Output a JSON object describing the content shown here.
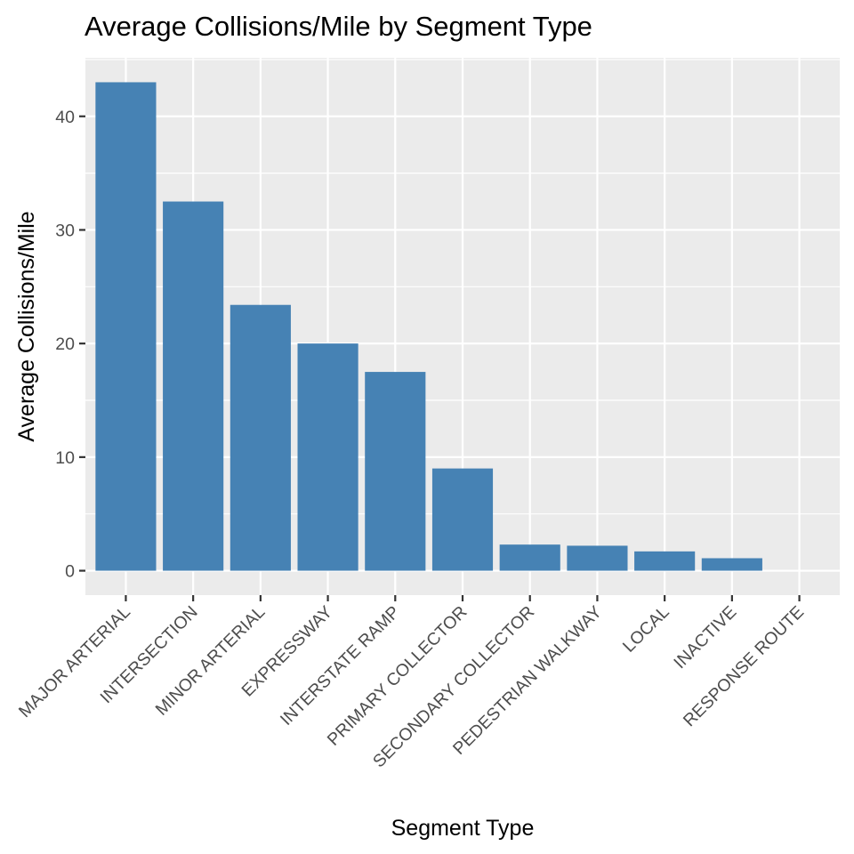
{
  "chart_data": {
    "type": "bar",
    "title": "Average Collisions/Mile by Segment Type",
    "xlabel": "Segment Type",
    "ylabel": "Average Collisions/Mile",
    "categories": [
      "MAJOR ARTERIAL",
      "INTERSECTION",
      "MINOR ARTERIAL",
      "EXPRESSWAY",
      "INTERSTATE RAMP",
      "PRIMARY COLLECTOR",
      "SECONDARY COLLECTOR",
      "PEDESTRIAN WALKWAY",
      "LOCAL",
      "INACTIVE",
      "RESPONSE ROUTE"
    ],
    "values": [
      43.0,
      32.5,
      23.4,
      20.0,
      17.5,
      9.0,
      2.3,
      2.2,
      1.7,
      1.1,
      0.0
    ],
    "yticks": [
      0,
      10,
      20,
      30,
      40
    ],
    "ylim": [
      -2.15,
      45.15
    ],
    "grid": true,
    "legend": "none",
    "colors": {
      "bar": "#4682b4",
      "panel": "#ebebeb",
      "grid": "#ffffff",
      "tick": "#333333"
    }
  }
}
